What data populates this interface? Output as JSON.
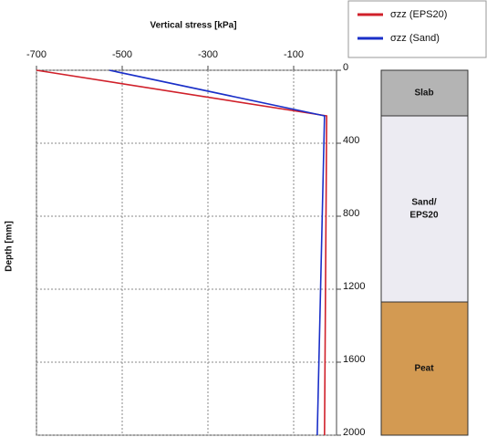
{
  "chart_data": {
    "type": "line",
    "title": "Vertical stress [kPa]",
    "y_label": "Depth [mm]",
    "xlim": [
      -700,
      0
    ],
    "xticks": [
      -700,
      -500,
      -300,
      -100
    ],
    "ylim": [
      0,
      2000
    ],
    "yticks": [
      0,
      400,
      800,
      1200,
      1600,
      2000
    ],
    "y_inverted": true,
    "grid": true,
    "series": [
      {
        "name": "σzz (EPS20)",
        "color": "#d0202a",
        "x": [
          -700,
          -23,
          -28
        ],
        "y": [
          0,
          250,
          2000
        ]
      },
      {
        "name": "σzz (Sand)",
        "color": "#1a2fc8",
        "x": [
          -530,
          -28,
          -45
        ],
        "y": [
          0,
          250,
          2000
        ]
      }
    ],
    "layers": [
      {
        "label": [
          "Slab"
        ],
        "top": 0,
        "bottom": 250,
        "color": "#b4b4b4"
      },
      {
        "label": [
          "Sand/",
          "EPS20"
        ],
        "top": 250,
        "bottom": 1270,
        "color": "#ecebf2"
      },
      {
        "label": [
          "Peat"
        ],
        "top": 1270,
        "bottom": 2000,
        "color": "#d39a52"
      }
    ]
  }
}
